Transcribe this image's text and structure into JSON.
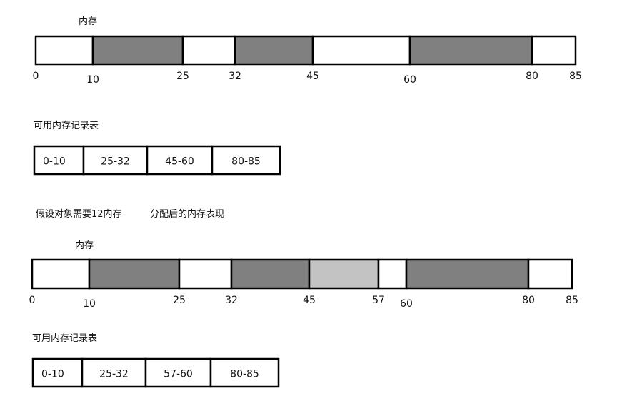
{
  "before": {
    "heading": "内存",
    "bar": {
      "range": [
        0,
        85
      ],
      "segments": [
        {
          "start": 0,
          "end": 10,
          "state": "free"
        },
        {
          "start": 10,
          "end": 25,
          "state": "used"
        },
        {
          "start": 25,
          "end": 32,
          "state": "free"
        },
        {
          "start": 32,
          "end": 45,
          "state": "used"
        },
        {
          "start": 45,
          "end": 60,
          "state": "free"
        },
        {
          "start": 60,
          "end": 80,
          "state": "used"
        },
        {
          "start": 80,
          "end": 85,
          "state": "free"
        }
      ],
      "ticks": [
        "0",
        "10",
        "25",
        "32",
        "45",
        "60",
        "80",
        "85"
      ]
    },
    "table_title": "可用内存记录表",
    "table_cells": [
      "0-10",
      "25-32",
      "45-60",
      "80-85"
    ]
  },
  "scenario_note": "假设对象需要12内存",
  "after_title": "分配后的内存表现",
  "after": {
    "heading": "内存",
    "bar": {
      "range": [
        0,
        85
      ],
      "segments": [
        {
          "start": 0,
          "end": 10,
          "state": "free"
        },
        {
          "start": 10,
          "end": 25,
          "state": "used"
        },
        {
          "start": 25,
          "end": 32,
          "state": "free"
        },
        {
          "start": 32,
          "end": 45,
          "state": "used"
        },
        {
          "start": 45,
          "end": 57,
          "state": "new"
        },
        {
          "start": 57,
          "end": 60,
          "state": "free"
        },
        {
          "start": 60,
          "end": 80,
          "state": "used"
        },
        {
          "start": 80,
          "end": 85,
          "state": "free"
        }
      ],
      "ticks": [
        "0",
        "10",
        "25",
        "32",
        "45",
        "57",
        "60",
        "80",
        "85"
      ]
    },
    "table_title": "可用内存记录表",
    "table_cells": [
      "0-10",
      "25-32",
      "57-60",
      "80-85"
    ]
  },
  "colors": {
    "free": "#ffffff",
    "used": "#808080",
    "new": "#c3c3c3",
    "stroke": "#000000"
  }
}
